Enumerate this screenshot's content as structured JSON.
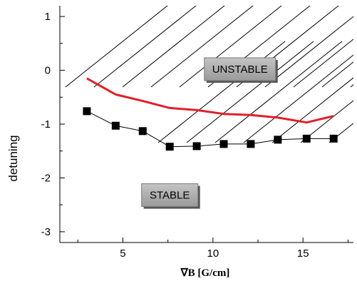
{
  "chart_data": {
    "type": "line",
    "xlabel": "∇B [G/cm]",
    "ylabel": "detuning",
    "xlim": [
      1.5,
      17.8
    ],
    "ylim": [
      -3.2,
      1.2
    ],
    "xticks": [
      5,
      10,
      15
    ],
    "yticks": [
      1,
      0,
      -1,
      -2,
      -3
    ],
    "grid": false,
    "series": [
      {
        "marker": "square",
        "color": "#000000",
        "x": [
          3.0,
          4.6,
          6.1,
          7.6,
          9.1,
          10.6,
          12.1,
          13.6,
          15.2,
          16.7
        ],
        "y": [
          -0.76,
          -1.03,
          -1.13,
          -1.42,
          -1.41,
          -1.37,
          -1.37,
          -1.29,
          -1.27,
          -1.27
        ]
      },
      {
        "marker": "none",
        "color": "#e0202a",
        "x": [
          3.0,
          4.6,
          6.1,
          7.6,
          9.1,
          10.6,
          12.1,
          13.6,
          15.2,
          16.7
        ],
        "y": [
          -0.15,
          -0.45,
          -0.57,
          -0.7,
          -0.74,
          -0.81,
          -0.83,
          -0.88,
          -0.97,
          -0.85
        ]
      }
    ],
    "annotations": [
      {
        "text": "UNSTABLE",
        "x": 11.5,
        "y": 0.02
      },
      {
        "text": "STABLE",
        "x": 7.6,
        "y": -2.32
      }
    ],
    "hatching": {
      "color": "#000000",
      "region": "unstable"
    }
  }
}
